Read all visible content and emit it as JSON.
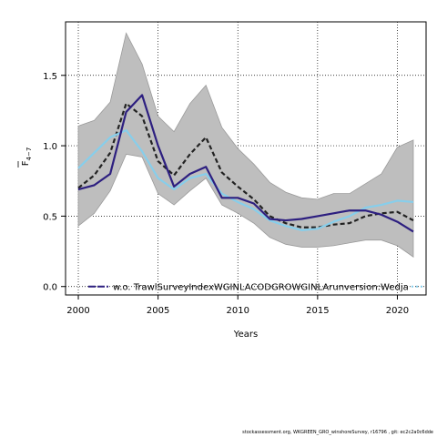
{
  "chart_data": {
    "type": "line",
    "xlabel": "Years",
    "ylabel_main": "F",
    "ylabel_sub": "4−7",
    "xlim": [
      1999.2,
      2021.8
    ],
    "ylim": [
      -0.06,
      1.88
    ],
    "xticks": [
      "2000",
      "2005",
      "2010",
      "2015",
      "2020"
    ],
    "yticks": [
      "0.0",
      "0.5",
      "1.0",
      "1.5"
    ],
    "grid": true,
    "legend_position": "bottom-center",
    "x": [
      2000,
      2001,
      2002,
      2003,
      2004,
      2005,
      2006,
      2007,
      2008,
      2009,
      2010,
      2011,
      2012,
      2013,
      2014,
      2015,
      2016,
      2017,
      2018,
      2019,
      2020,
      2021
    ],
    "band": {
      "color": "#bebebe",
      "upper": [
        1.14,
        1.18,
        1.31,
        1.8,
        1.58,
        1.21,
        1.1,
        1.3,
        1.43,
        1.13,
        0.98,
        0.87,
        0.74,
        0.67,
        0.63,
        0.62,
        0.66,
        0.66,
        0.73,
        0.8,
        0.99,
        1.04
      ],
      "lower": [
        0.43,
        0.52,
        0.68,
        0.94,
        0.92,
        0.66,
        0.58,
        0.68,
        0.77,
        0.58,
        0.52,
        0.45,
        0.35,
        0.3,
        0.28,
        0.28,
        0.29,
        0.31,
        0.33,
        0.33,
        0.29,
        0.21
      ]
    },
    "series": [
      {
        "color": "#222222",
        "style": "dashed",
        "values": [
          0.7,
          0.79,
          0.95,
          1.3,
          1.21,
          0.89,
          0.79,
          0.94,
          1.06,
          0.81,
          0.71,
          0.62,
          0.5,
          0.45,
          0.42,
          0.42,
          0.44,
          0.45,
          0.5,
          0.52,
          0.53,
          0.47
        ]
      },
      {
        "name": "w.o. TrawlSurveyIndexWGINLACODGROWGINLArunversion:Wedja",
        "color": "#87ceeb",
        "style": "solid",
        "values": [
          0.84,
          0.95,
          1.06,
          1.11,
          0.96,
          0.77,
          0.69,
          0.77,
          0.8,
          0.66,
          0.6,
          0.55,
          0.47,
          0.43,
          0.4,
          0.41,
          0.46,
          0.5,
          0.56,
          0.58,
          0.61,
          0.6
        ]
      },
      {
        "color": "#2d1f80",
        "style": "solid",
        "values": [
          0.69,
          0.72,
          0.8,
          1.24,
          1.36,
          1.0,
          0.71,
          0.8,
          0.85,
          0.63,
          0.63,
          0.59,
          0.48,
          0.47,
          0.48,
          0.5,
          0.52,
          0.54,
          0.54,
          0.51,
          0.46,
          0.39
        ]
      }
    ],
    "legend": {
      "label": "w.o. TrawlSurveyIndexWGINLACODGROWGINLArunversion:Wedja",
      "line_color": "#2d1f80",
      "right_dot_color": "#87ceeb"
    }
  },
  "footer": "stockassessment.org,  WKGREEN_GRO_winshoreSurvey,  r16796 ,  git:  ec2c2a0c6dde"
}
